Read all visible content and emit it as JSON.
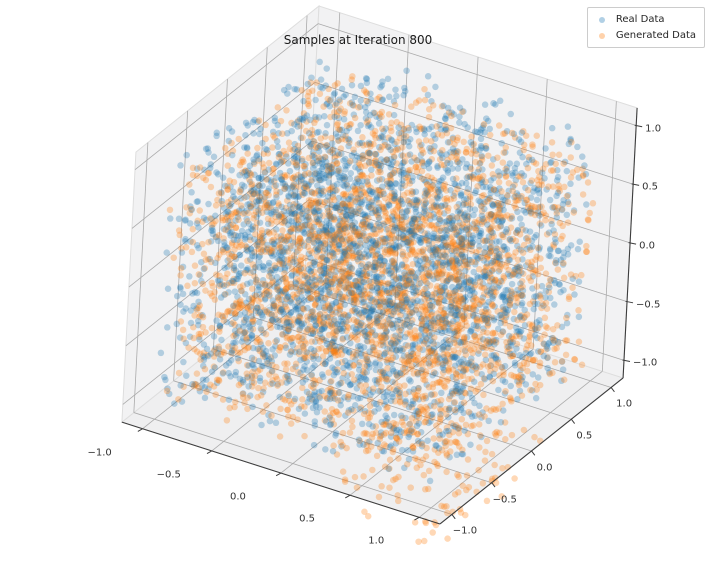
{
  "chart_data": {
    "type": "scatter",
    "projection": "3d",
    "title": "Samples at Iteration 800",
    "view": {
      "elev": 30,
      "azim": -60
    },
    "axes": {
      "x": {
        "range": [
          -1.15,
          1.15
        ],
        "ticks": [
          -1.0,
          -0.5,
          0.0,
          0.5,
          1.0
        ],
        "tick_labels": [
          "−1.0",
          "−0.5",
          "0.0",
          "0.5",
          "1.0"
        ]
      },
      "y": {
        "range": [
          -1.15,
          1.15
        ],
        "ticks": [
          -1.0,
          -0.5,
          0.0,
          0.5,
          1.0
        ],
        "tick_labels": [
          "−1.0",
          "−0.5",
          "0.0",
          "0.5",
          "1.0"
        ]
      },
      "z": {
        "range": [
          -1.15,
          1.15
        ],
        "ticks": [
          -1.0,
          -0.5,
          0.0,
          0.5,
          1.0
        ],
        "tick_labels": [
          "−1.0",
          "−0.5",
          "0.0",
          "0.5",
          "1.0"
        ]
      }
    },
    "grid": true,
    "legend": {
      "position": "upper right",
      "entries": [
        {
          "label": "Real Data",
          "color": "#1f77b4"
        },
        {
          "label": "Generated Data",
          "color": "#ff7f0e"
        }
      ]
    },
    "series": [
      {
        "name": "Real Data",
        "color": "#1f77b4",
        "alpha": 0.3,
        "marker_px": 6.5,
        "count": 3000,
        "seed": 7,
        "distribution": {
          "kind": "uniform",
          "x": [
            -1,
            1
          ],
          "y": [
            -1,
            1
          ],
          "z": [
            -1,
            1
          ]
        }
      },
      {
        "name": "Generated Data",
        "color": "#ff7f0e",
        "alpha": 0.3,
        "marker_px": 6.5,
        "count": 3000,
        "seed": 99,
        "distribution": {
          "kind": "uniform",
          "x": [
            -1,
            1
          ],
          "y": [
            -1,
            1
          ],
          "z": [
            -1.02,
            0.9
          ],
          "tail_fraction": 0.04,
          "tail": {
            "x": [
              0.25,
              1.08
            ],
            "y": [
              -0.95,
              0.25
            ],
            "z": [
              -1.55,
              -1.02
            ]
          }
        }
      }
    ],
    "style": {
      "pane_color": "#f2f2f3",
      "floor_color": "#efeff0",
      "pane_edge_color": "#dedede",
      "grid_color": "#ababab",
      "axis_line_color": "#3d3d3d",
      "tick_label_color": "#333333",
      "title_color": "#1a1a1a",
      "legend_border_color": "#cccccc",
      "background": "#ffffff"
    }
  }
}
